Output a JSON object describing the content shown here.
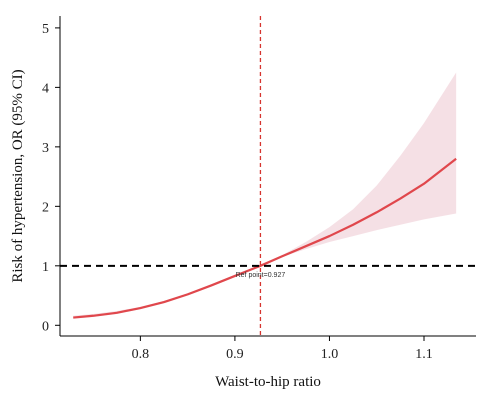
{
  "chart_data": {
    "type": "line",
    "title": "",
    "xlabel": "Waist-to-hip ratio",
    "ylabel": "Risk of hypertension, OR (95% CI)",
    "xlim": [
      0.715,
      1.155
    ],
    "ylim": [
      -0.18,
      5.2
    ],
    "x_ticks": [
      0.8,
      0.9,
      1.0,
      1.1
    ],
    "x_tick_labels": [
      "0.8",
      "0.9",
      "1.0",
      "1.1"
    ],
    "y_ticks": [
      0,
      1,
      2,
      3,
      4,
      5
    ],
    "y_tick_labels": [
      "0",
      "1",
      "2",
      "3",
      "4",
      "5"
    ],
    "grid": false,
    "legend": "none",
    "reference_line_y": 1,
    "reference_line_x": 0.927,
    "annotation": "Ref point=0.927",
    "series": [
      {
        "color": "#e0474c",
        "x": [
          0.729,
          0.75,
          0.775,
          0.8,
          0.825,
          0.85,
          0.875,
          0.9,
          0.927,
          0.95,
          0.975,
          1.0,
          1.025,
          1.05,
          1.075,
          1.1,
          1.134
        ],
        "y": [
          0.13,
          0.16,
          0.21,
          0.29,
          0.39,
          0.52,
          0.67,
          0.83,
          1.0,
          1.16,
          1.33,
          1.5,
          1.69,
          1.9,
          2.13,
          2.38,
          2.8
        ]
      }
    ],
    "ci_band": {
      "color": "#f4dde2",
      "x": [
        0.729,
        0.75,
        0.775,
        0.8,
        0.825,
        0.85,
        0.875,
        0.9,
        0.927,
        0.95,
        0.975,
        1.0,
        1.025,
        1.05,
        1.075,
        1.1,
        1.134
      ],
      "lower": [
        0.11,
        0.14,
        0.19,
        0.27,
        0.37,
        0.5,
        0.65,
        0.81,
        1.0,
        1.15,
        1.28,
        1.4,
        1.5,
        1.6,
        1.69,
        1.78,
        1.88
      ],
      "upper": [
        0.16,
        0.19,
        0.24,
        0.31,
        0.41,
        0.54,
        0.69,
        0.85,
        1.0,
        1.18,
        1.4,
        1.65,
        1.95,
        2.35,
        2.85,
        3.4,
        4.25
      ]
    },
    "colors": {
      "line": "#e0474c",
      "band": "#f4dde2",
      "vline": "#d6342f",
      "hline": "#000000",
      "axis": "#000000"
    }
  }
}
